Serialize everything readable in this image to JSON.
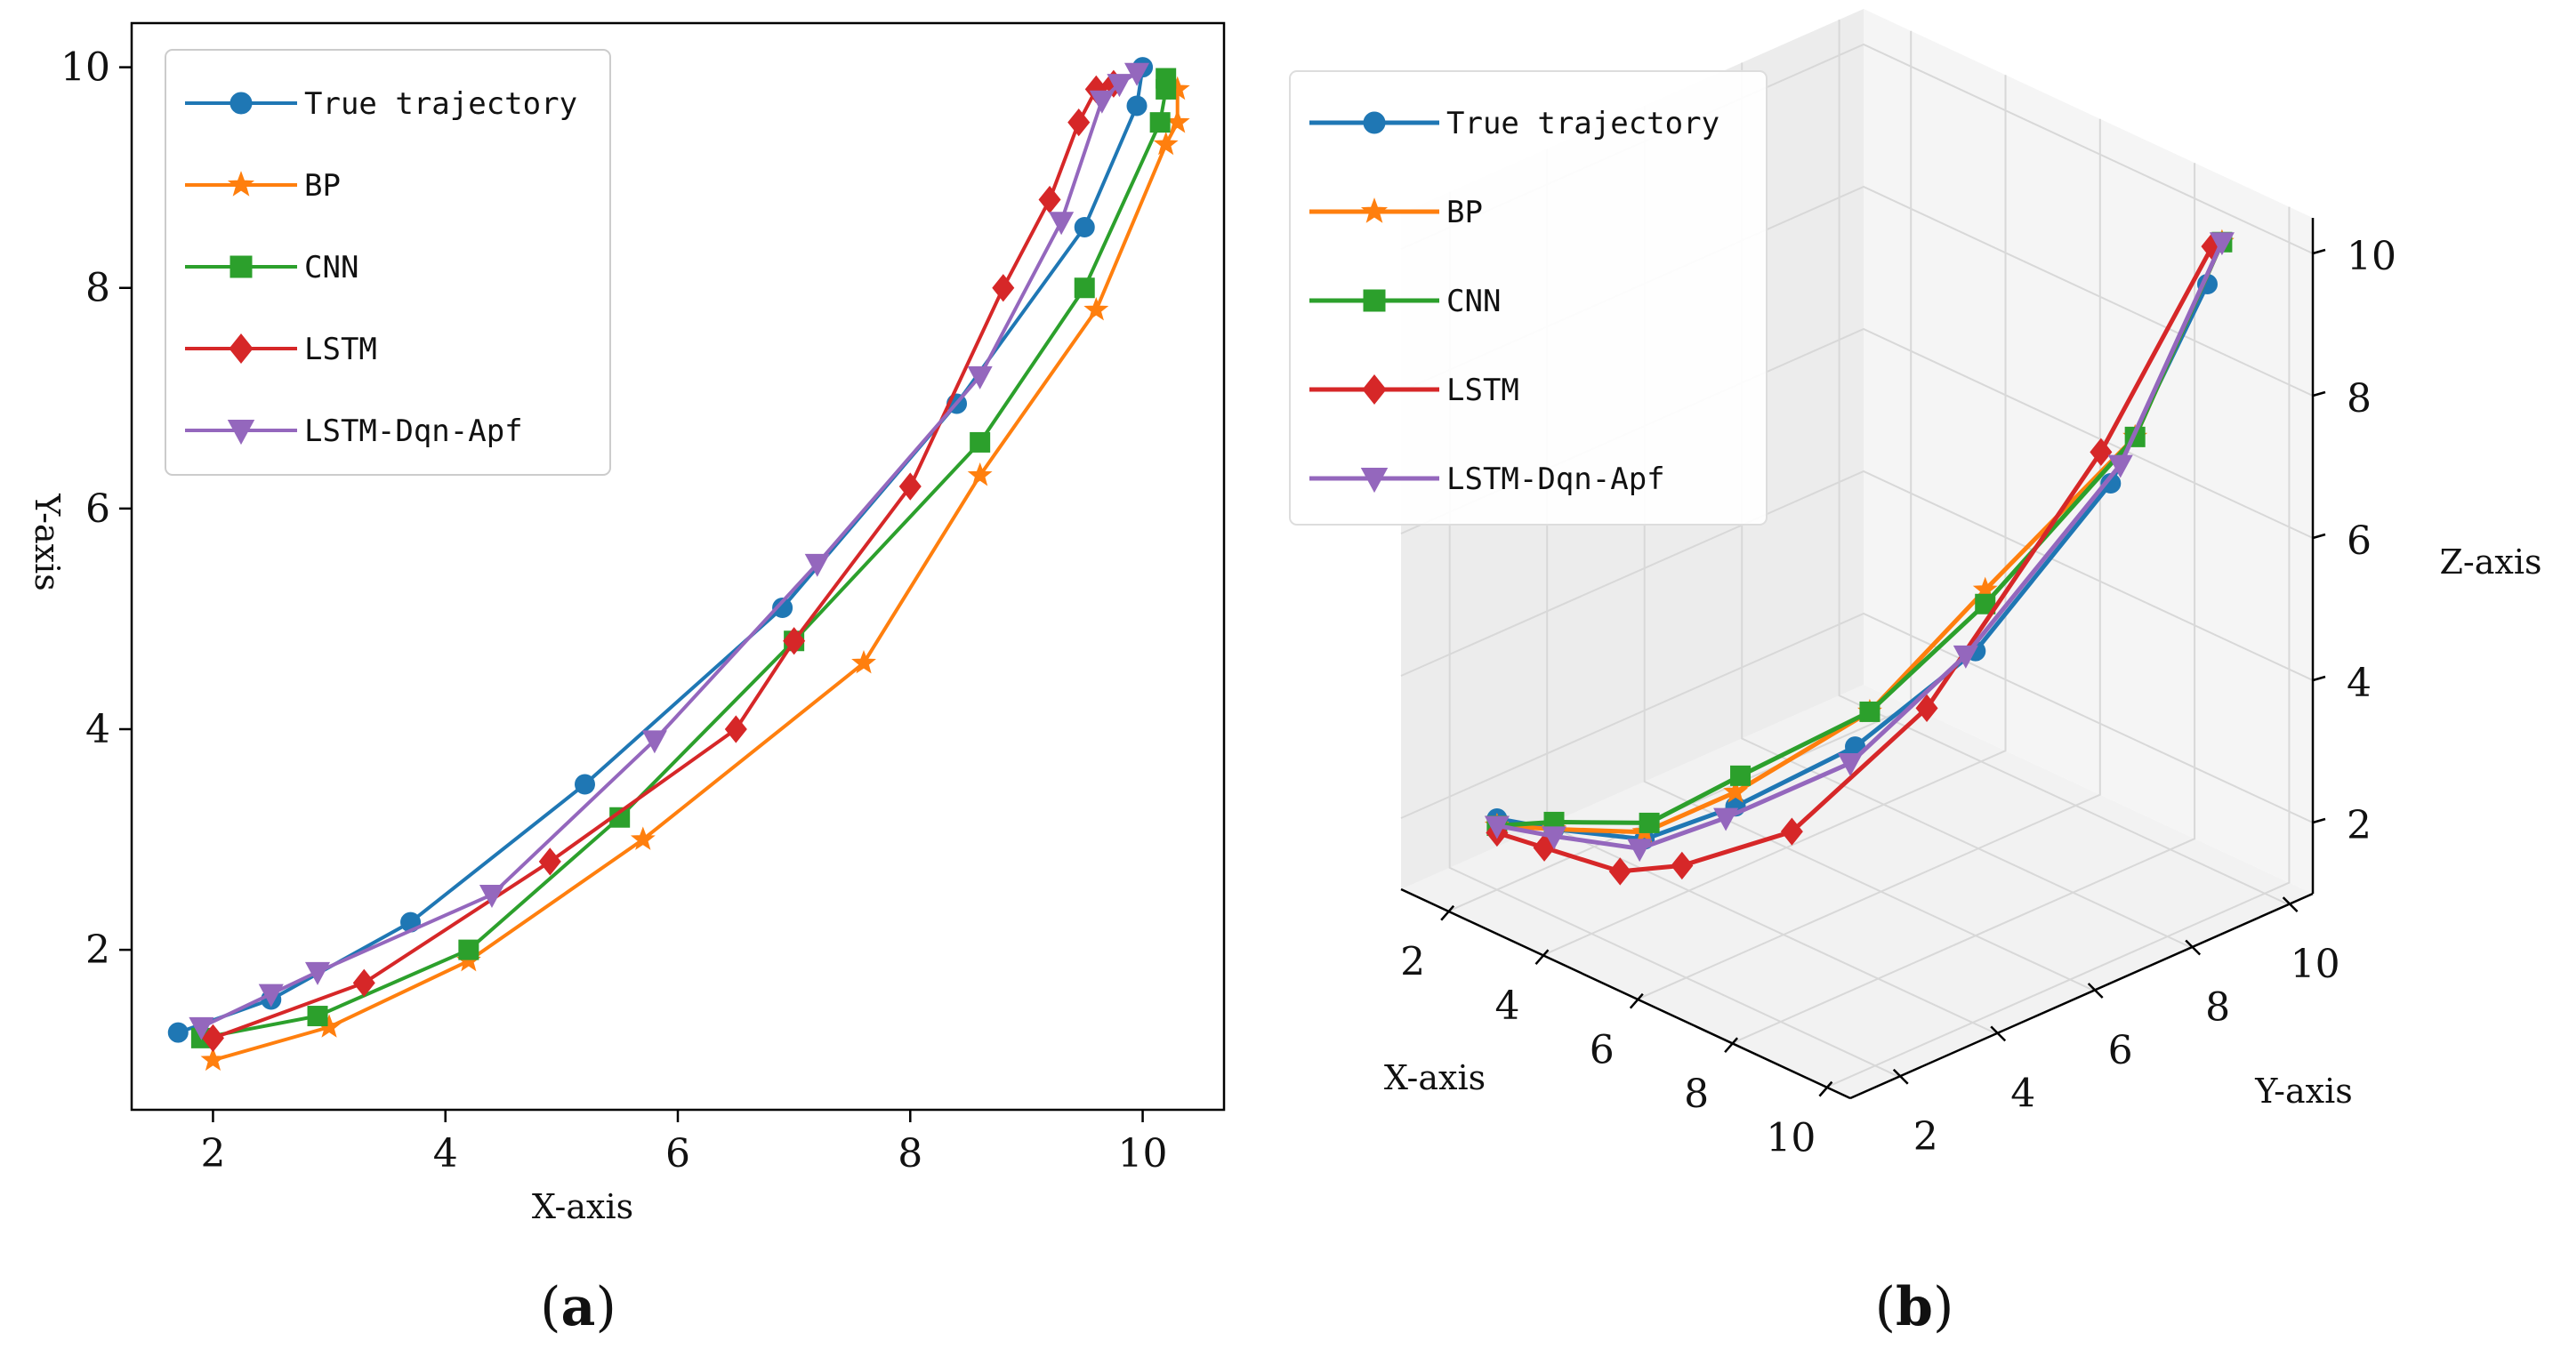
{
  "chart_data": [
    {
      "type": "line",
      "panel_label": "a",
      "xlabel": "X-axis",
      "ylabel": "Y-axis",
      "xlim": [
        1.3,
        10.7
      ],
      "ylim": [
        0.55,
        10.4
      ],
      "xticks": [
        2,
        4,
        6,
        8,
        10
      ],
      "yticks": [
        2,
        4,
        6,
        8,
        10
      ],
      "grid": false,
      "legend_position": "top-left",
      "series": [
        {
          "name": "True trajectory",
          "color": "#1f77b4",
          "marker": "circle",
          "x": [
            1.7,
            2.5,
            3.7,
            5.2,
            6.9,
            8.4,
            9.5,
            9.95,
            10.0
          ],
          "y": [
            1.25,
            1.55,
            2.25,
            3.5,
            5.1,
            6.95,
            8.55,
            9.65,
            10.0
          ]
        },
        {
          "name": "BP",
          "color": "#ff7f0e",
          "marker": "star",
          "x": [
            2.0,
            3.0,
            4.2,
            5.7,
            7.6,
            8.6,
            9.6,
            10.2,
            10.3,
            10.3
          ],
          "y": [
            1.0,
            1.3,
            1.9,
            3.0,
            4.6,
            6.3,
            7.8,
            9.3,
            9.5,
            9.8
          ]
        },
        {
          "name": "CNN",
          "color": "#2ca02c",
          "marker": "square",
          "x": [
            1.9,
            2.9,
            4.2,
            5.5,
            7.0,
            8.6,
            9.5,
            10.15,
            10.2,
            10.2
          ],
          "y": [
            1.2,
            1.4,
            2.0,
            3.2,
            4.8,
            6.6,
            8.0,
            9.5,
            9.8,
            9.9
          ]
        },
        {
          "name": "LSTM",
          "color": "#d62728",
          "marker": "diamond",
          "x": [
            2.0,
            3.3,
            4.9,
            6.5,
            7.0,
            8.0,
            8.8,
            9.2,
            9.45,
            9.6,
            9.75
          ],
          "y": [
            1.2,
            1.7,
            2.8,
            4.0,
            4.8,
            6.2,
            8.0,
            8.8,
            9.5,
            9.8,
            9.85
          ]
        },
        {
          "name": "LSTM-Dqn-Apf",
          "color": "#9467bd",
          "marker": "triangle-down",
          "x": [
            1.9,
            2.5,
            2.9,
            4.4,
            5.8,
            7.2,
            8.6,
            9.3,
            9.65,
            9.8,
            9.95
          ],
          "y": [
            1.3,
            1.6,
            1.8,
            2.5,
            3.9,
            5.5,
            7.2,
            8.6,
            9.7,
            9.85,
            9.95
          ]
        }
      ]
    },
    {
      "type": "line3d",
      "panel_label": "b",
      "xlabel": "X-axis",
      "ylabel": "Y-axis",
      "zlabel": "Z-axis",
      "xticks": [
        2,
        4,
        6,
        8,
        10
      ],
      "yticks": [
        2,
        4,
        6,
        8,
        10
      ],
      "zticks": [
        2,
        4,
        6,
        8,
        10
      ],
      "grid": true,
      "legend_position": "top-left",
      "series": [
        {
          "name": "True trajectory",
          "color": "#1f77b4",
          "marker": "circle",
          "x": [
            2.0,
            3.0,
            4.5,
            5.5,
            7.0,
            8.0,
            8.8,
            9.3
          ],
          "y": [
            2.0,
            2.2,
            2.6,
            3.5,
            4.5,
            6.0,
            8.0,
            9.5
          ],
          "z": [
            2.0,
            2.1,
            2.3,
            2.8,
            3.8,
            5.0,
            7.0,
            9.5
          ]
        },
        {
          "name": "BP",
          "color": "#ff7f0e",
          "marker": "star",
          "x": [
            2.0,
            3.0,
            4.5,
            5.5,
            7.0,
            8.0,
            8.8,
            9.3
          ],
          "y": [
            2.0,
            2.2,
            2.6,
            3.5,
            4.8,
            6.2,
            8.5,
            9.8
          ],
          "z": [
            1.9,
            2.1,
            2.4,
            3.0,
            4.2,
            5.8,
            7.5,
            10.0
          ]
        },
        {
          "name": "CNN",
          "color": "#2ca02c",
          "marker": "square",
          "x": [
            2.0,
            3.0,
            4.5,
            5.5,
            7.0,
            8.0,
            8.8,
            9.3
          ],
          "y": [
            2.0,
            2.2,
            2.7,
            3.6,
            4.8,
            6.2,
            8.5,
            9.8
          ],
          "z": [
            1.9,
            2.2,
            2.5,
            3.2,
            4.2,
            5.6,
            7.5,
            10.0
          ]
        },
        {
          "name": "LSTM",
          "color": "#d62728",
          "marker": "diamond",
          "x": [
            2.0,
            3.0,
            4.5,
            5.5,
            7.0,
            8.0,
            8.8,
            9.3
          ],
          "y": [
            2.0,
            2.0,
            2.1,
            2.4,
            3.2,
            5.0,
            7.8,
            9.6
          ],
          "z": [
            1.8,
            1.9,
            2.0,
            2.3,
            3.0,
            4.5,
            7.5,
            10.0
          ]
        },
        {
          "name": "LSTM-Dqn-Apf",
          "color": "#9467bd",
          "marker": "triangle-down",
          "x": [
            2.0,
            3.0,
            4.5,
            5.5,
            7.0,
            8.0,
            8.8,
            9.3
          ],
          "y": [
            2.0,
            2.2,
            2.5,
            3.3,
            4.4,
            5.8,
            8.2,
            9.8
          ],
          "z": [
            1.9,
            2.0,
            2.2,
            2.7,
            3.6,
            5.0,
            7.2,
            10.0
          ]
        }
      ]
    }
  ]
}
